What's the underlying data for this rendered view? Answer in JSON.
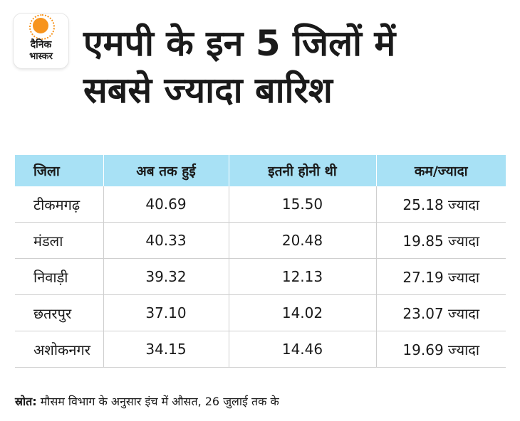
{
  "logo": {
    "line1": "दैनिक",
    "line2": "भास्कर",
    "accent": "#f7941d"
  },
  "headline": {
    "line1": "एमपी के इन 5 जिलों में",
    "line2": "सबसे ज्यादा बारिश"
  },
  "table": {
    "header_bg": "#a8e1f5",
    "columns": [
      "जिला",
      "अब तक हुई",
      "इतनी होनी थी",
      "कम/ज्यादा"
    ],
    "rows": [
      [
        "टीकमगढ़",
        "40.69",
        "15.50",
        "25.18 ज्यादा"
      ],
      [
        "मंडला",
        "40.33",
        "20.48",
        "19.85 ज्यादा"
      ],
      [
        "निवाड़ी",
        "39.32",
        "12.13",
        "27.19 ज्यादा"
      ],
      [
        "छतरपुर",
        "37.10",
        "14.02",
        "23.07 ज्यादा"
      ],
      [
        "अशोकनगर",
        "34.15",
        "14.46",
        "19.69 ज्यादा"
      ]
    ]
  },
  "source": {
    "label": "स्रोत:",
    "text": "मौसम विभाग के अनुसार इंच में औसत, 26 जुलाई तक के"
  }
}
